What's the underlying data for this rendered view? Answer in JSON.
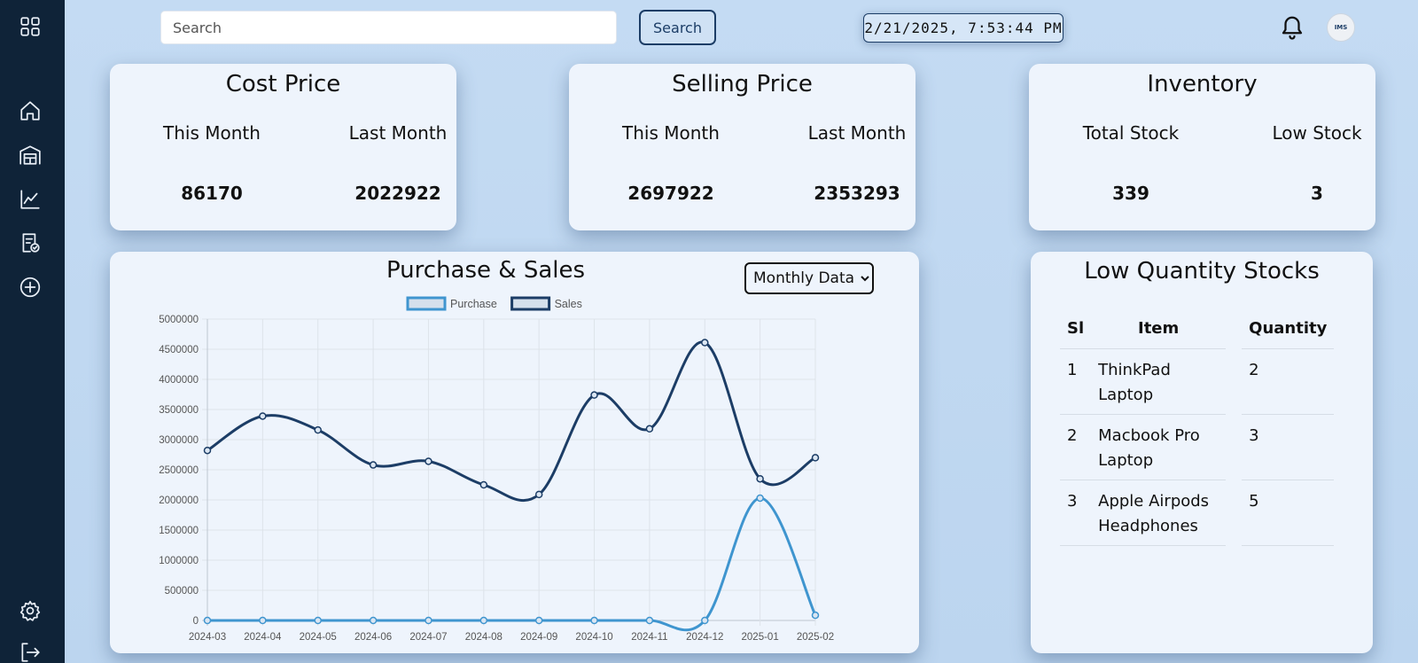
{
  "sidebar": {
    "items": [
      {
        "icon": "grid-icon"
      },
      {
        "icon": "home-icon"
      },
      {
        "icon": "warehouse-icon"
      },
      {
        "icon": "chart-line-icon"
      },
      {
        "icon": "report-icon"
      },
      {
        "icon": "add-circle-icon"
      },
      {
        "icon": "gear-icon"
      },
      {
        "icon": "logout-icon"
      }
    ]
  },
  "header": {
    "search_placeholder": "Search",
    "search_button": "Search",
    "clock": "2/21/2025, 7:53:44 PM",
    "notification_icon": "bell-icon",
    "avatar_text": "IMS"
  },
  "cost_card": {
    "title": "Cost Price",
    "this_month_label": "This Month",
    "last_month_label": "Last Month",
    "this_month_value": "86170",
    "last_month_value": "2022922"
  },
  "selling_card": {
    "title": "Selling Price",
    "this_month_label": "This Month",
    "last_month_label": "Last Month",
    "this_month_value": "2697922",
    "last_month_value": "2353293"
  },
  "inventory_card": {
    "title": "Inventory",
    "total_label": "Total Stock",
    "low_label": "Low Stock",
    "total_value": "339",
    "low_value": "3"
  },
  "chart_panel": {
    "title": "Purchase & Sales",
    "select_options": [
      "Monthly Data"
    ],
    "selected": "Monthly Data"
  },
  "chart_data": {
    "type": "line",
    "x": [
      "2024-03",
      "2024-04",
      "2024-05",
      "2024-06",
      "2024-07",
      "2024-08",
      "2024-09",
      "2024-10",
      "2024-11",
      "2024-12",
      "2025-01",
      "2025-02"
    ],
    "series": [
      {
        "name": "Purchase",
        "color": "#3f95cf",
        "values": [
          0,
          0,
          0,
          0,
          0,
          0,
          0,
          0,
          0,
          0,
          2030000,
          86170
        ]
      },
      {
        "name": "Sales",
        "color": "#1c3d66",
        "values": [
          2820000,
          3390000,
          3160000,
          2580000,
          2640000,
          2250000,
          2090000,
          3740000,
          3180000,
          4610000,
          2350000,
          2700000
        ]
      }
    ],
    "ylim": [
      0,
      5000000
    ],
    "yticks": [
      "0",
      "500000",
      "1000000",
      "1500000",
      "2000000",
      "2500000",
      "3000000",
      "3500000",
      "4000000",
      "4500000",
      "5000000"
    ],
    "legend": "top",
    "grid": true
  },
  "low_stock": {
    "title": "Low Quantity Stocks",
    "headers": {
      "si": "Sl",
      "item": "Item",
      "qty": "Quantity"
    },
    "rows": [
      {
        "si": "1",
        "item_line1": "ThinkPad",
        "item_line2": "Laptop",
        "qty": "2"
      },
      {
        "si": "2",
        "item_line1": "Macbook Pro",
        "item_line2": "Laptop",
        "qty": "3"
      },
      {
        "si": "3",
        "item_line1": "Apple Airpods",
        "item_line2": "Headphones",
        "qty": "5"
      }
    ]
  }
}
